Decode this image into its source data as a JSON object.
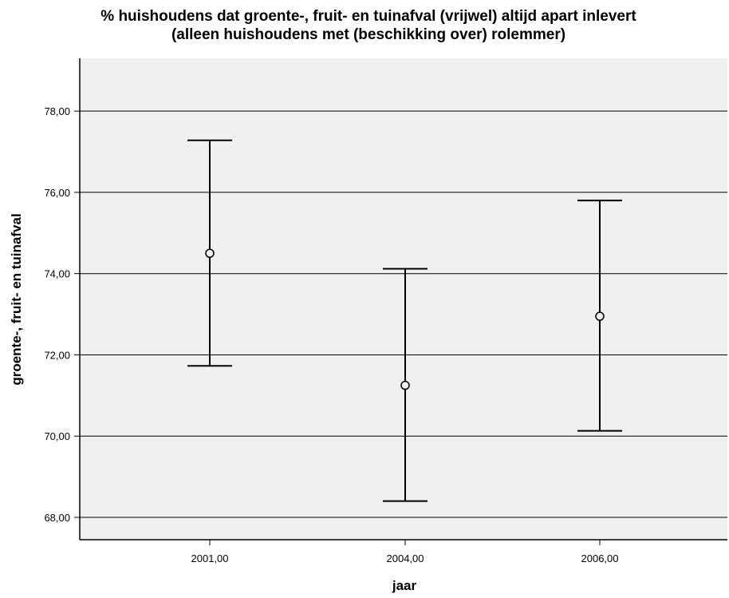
{
  "chart_data": {
    "type": "errorbar",
    "title": "% huishoudens dat groente-, fruit- en tuinafval (vrijwel) altijd apart inlevert",
    "subtitle": "(alleen huishoudens met (beschikking over) rolemmer)",
    "xlabel": "jaar",
    "ylabel": "groente-, fruit- en tuinafval",
    "categories": [
      "2001,00",
      "2004,00",
      "2006,00"
    ],
    "mean": [
      74.5,
      71.25,
      72.95
    ],
    "lower": [
      71.73,
      68.4,
      70.13
    ],
    "upper": [
      77.28,
      74.12,
      75.8
    ],
    "ylim": [
      67.45,
      79.3
    ],
    "yticks": [
      68,
      70,
      72,
      74,
      76,
      78
    ],
    "ytick_labels": [
      "68,00",
      "70,00",
      "72,00",
      "74,00",
      "76,00",
      "78,00"
    ],
    "grid": true,
    "plot_background": "#f0f0f0",
    "line_color": "#000000"
  }
}
